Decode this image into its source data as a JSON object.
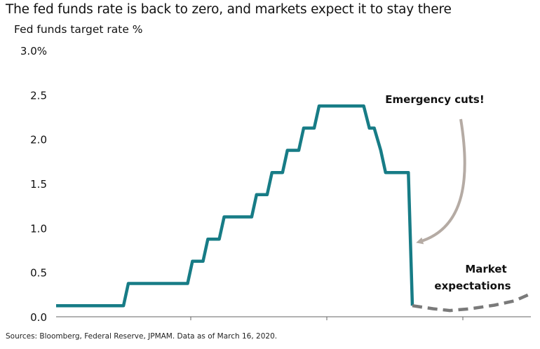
{
  "chart_data": {
    "type": "line",
    "title": "The fed funds rate is back to zero, and markets expect it to stay there",
    "ylabel": "Fed funds target rate %",
    "ylim": [
      0,
      3.0
    ],
    "y_ticks": [
      "3.0%",
      "2.5",
      "2.0",
      "1.5",
      "1.0",
      "0.5",
      "0.0"
    ],
    "y_tick_values": [
      3.0,
      2.5,
      2.0,
      1.5,
      1.0,
      0.5,
      0.0
    ],
    "grid": false,
    "series": [
      {
        "style": "solid",
        "color": "#177c86",
        "points": [
          [
            0,
            0.125
          ],
          [
            8.3,
            0.125
          ],
          [
            8.9,
            0.375
          ],
          [
            16.2,
            0.375
          ],
          [
            16.8,
            0.625
          ],
          [
            18.1,
            0.625
          ],
          [
            18.7,
            0.875
          ],
          [
            20.1,
            0.875
          ],
          [
            20.7,
            1.125
          ],
          [
            24.1,
            1.125
          ],
          [
            24.7,
            1.375
          ],
          [
            26.0,
            1.375
          ],
          [
            26.6,
            1.625
          ],
          [
            27.9,
            1.625
          ],
          [
            28.5,
            1.875
          ],
          [
            29.9,
            1.875
          ],
          [
            30.5,
            2.125
          ],
          [
            31.8,
            2.125
          ],
          [
            32.4,
            2.375
          ],
          [
            37.9,
            2.375
          ],
          [
            38.6,
            2.125
          ],
          [
            39.2,
            2.125
          ],
          [
            40.0,
            1.875
          ],
          [
            40.6,
            1.625
          ],
          [
            43.4,
            1.625
          ],
          [
            43.9,
            0.125
          ]
        ]
      },
      {
        "style": "dashed",
        "color": "#7a7a7a",
        "points": [
          [
            43.9,
            0.125
          ],
          [
            46.5,
            0.09
          ],
          [
            48.5,
            0.07
          ],
          [
            51,
            0.09
          ],
          [
            54,
            0.13
          ],
          [
            56.5,
            0.18
          ],
          [
            58.5,
            0.26
          ]
        ]
      }
    ],
    "annotations": [
      {
        "text": "Emergency cuts!"
      },
      {
        "text": "Market"
      },
      {
        "text": "expectations"
      }
    ],
    "source": "Sources: Bloomberg, Federal Reserve, JPMAM. Data as of March 16, 2020."
  }
}
